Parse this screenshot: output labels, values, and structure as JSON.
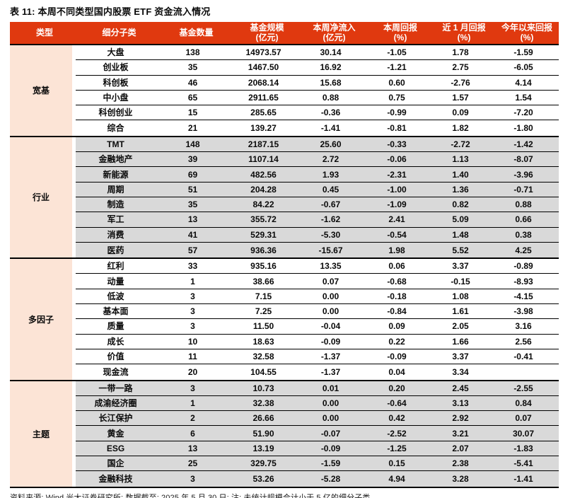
{
  "title": "表 11: 本周不同类型国内股票 ETF 资金流入情况",
  "footer": "资料来源: Wind,光大证券研究所; 数据截至: 2025 年 5 月 30 日; 注: 未统计规模合计小于 5 亿的细分子类",
  "colors": {
    "header_bg": "#E0390F",
    "type_bg": "#FCE4D6",
    "stripe": "#D9D9D9"
  },
  "table": {
    "columns": [
      "类型",
      "细分子类",
      "基金数量",
      "基金规模\n(亿元)",
      "本周净流入\n(亿元)",
      "本周回报\n(%)",
      "近 1 月回报\n(%)",
      "今年以来回报\n(%)"
    ],
    "sections": [
      {
        "type": "宽基",
        "rows": [
          [
            "大盘",
            "138",
            "14973.57",
            "30.14",
            "-1.05",
            "1.78",
            "-1.59"
          ],
          [
            "创业板",
            "35",
            "1467.50",
            "16.92",
            "-1.21",
            "2.75",
            "-6.05"
          ],
          [
            "科创板",
            "46",
            "2068.14",
            "15.68",
            "0.60",
            "-2.76",
            "4.14"
          ],
          [
            "中小盘",
            "65",
            "2911.65",
            "0.88",
            "0.75",
            "1.57",
            "1.54"
          ],
          [
            "科创创业",
            "15",
            "285.65",
            "-0.36",
            "-0.99",
            "0.09",
            "-7.20"
          ],
          [
            "综合",
            "21",
            "139.27",
            "-1.41",
            "-0.81",
            "1.82",
            "-1.80"
          ]
        ]
      },
      {
        "type": "行业",
        "rows": [
          [
            "TMT",
            "148",
            "2187.15",
            "25.60",
            "-0.33",
            "-2.72",
            "-1.42"
          ],
          [
            "金融地产",
            "39",
            "1107.14",
            "2.72",
            "-0.06",
            "1.13",
            "-8.07"
          ],
          [
            "新能源",
            "69",
            "482.56",
            "1.93",
            "-2.31",
            "1.40",
            "-3.96"
          ],
          [
            "周期",
            "51",
            "204.28",
            "0.45",
            "-1.00",
            "1.36",
            "-0.71"
          ],
          [
            "制造",
            "35",
            "84.22",
            "-0.67",
            "-1.09",
            "0.82",
            "0.88"
          ],
          [
            "军工",
            "13",
            "355.72",
            "-1.62",
            "2.41",
            "5.09",
            "0.66"
          ],
          [
            "消费",
            "41",
            "529.31",
            "-5.30",
            "-0.54",
            "1.48",
            "0.38"
          ],
          [
            "医药",
            "57",
            "936.36",
            "-15.67",
            "1.98",
            "5.52",
            "4.25"
          ]
        ]
      },
      {
        "type": "多因子",
        "rows": [
          [
            "红利",
            "33",
            "935.16",
            "13.35",
            "0.06",
            "3.37",
            "-0.89"
          ],
          [
            "动量",
            "1",
            "38.66",
            "0.07",
            "-0.68",
            "-0.15",
            "-8.93"
          ],
          [
            "低波",
            "3",
            "7.15",
            "0.00",
            "-0.18",
            "1.08",
            "-4.15"
          ],
          [
            "基本面",
            "3",
            "7.25",
            "0.00",
            "-0.84",
            "1.61",
            "-3.98"
          ],
          [
            "质量",
            "3",
            "11.50",
            "-0.04",
            "0.09",
            "2.05",
            "3.16"
          ],
          [
            "成长",
            "10",
            "18.63",
            "-0.09",
            "0.22",
            "1.66",
            "2.56"
          ],
          [
            "价值",
            "11",
            "32.58",
            "-1.37",
            "-0.09",
            "3.37",
            "-0.41"
          ],
          [
            "现金流",
            "20",
            "104.55",
            "-1.37",
            "0.04",
            "3.34",
            ""
          ]
        ]
      },
      {
        "type": "主题",
        "rows": [
          [
            "一带一路",
            "3",
            "10.73",
            "0.01",
            "0.20",
            "2.45",
            "-2.55"
          ],
          [
            "成渝经济圈",
            "1",
            "32.38",
            "0.00",
            "-0.64",
            "3.13",
            "0.84"
          ],
          [
            "长江保护",
            "2",
            "26.66",
            "0.00",
            "0.42",
            "2.92",
            "0.07"
          ],
          [
            "黄金",
            "6",
            "51.90",
            "-0.07",
            "-2.52",
            "3.21",
            "30.07"
          ],
          [
            "ESG",
            "13",
            "13.19",
            "-0.09",
            "-1.25",
            "2.07",
            "-1.83"
          ],
          [
            "国企",
            "25",
            "329.75",
            "-1.59",
            "0.15",
            "2.38",
            "-5.41"
          ],
          [
            "金融科技",
            "3",
            "53.26",
            "-5.28",
            "4.94",
            "3.28",
            "-1.41"
          ]
        ]
      }
    ]
  }
}
